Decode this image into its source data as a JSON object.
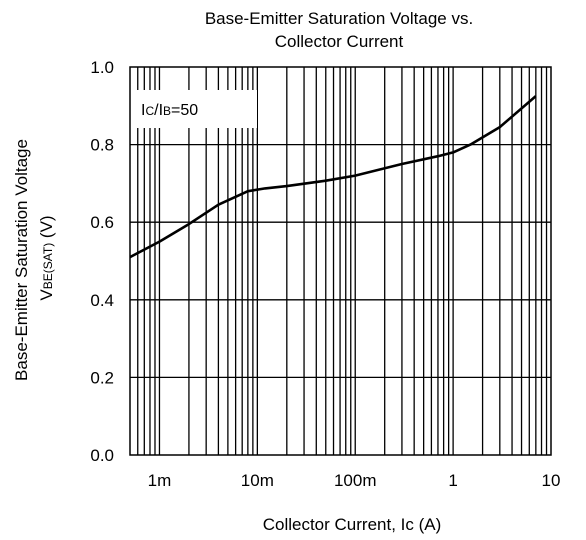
{
  "chart_data": {
    "type": "line",
    "title_line1": "Base-Emitter Saturation Voltage vs.",
    "title_line2": "Collector Current",
    "xlabel": "Collector Current, Ic (A)",
    "ylabel_line1": "Base-Emitter Saturation Voltage",
    "ylabel_line2_main": "V",
    "ylabel_line2_sub": "BE(SAT)",
    "ylabel_line2_unit": "(V)",
    "annotation": {
      "p1": "I",
      "s1": "C",
      "mid": "/I",
      "s2": "B",
      "tail": "=50"
    },
    "x_scale": "log",
    "xlim": [
      0.0005,
      10
    ],
    "ylim": [
      0.0,
      1.0
    ],
    "x_ticks": [
      {
        "value": 0.001,
        "label": "1m"
      },
      {
        "value": 0.01,
        "label": "10m"
      },
      {
        "value": 0.1,
        "label": "100m"
      },
      {
        "value": 1,
        "label": "1"
      },
      {
        "value": 10,
        "label": "10"
      }
    ],
    "y_ticks": [
      {
        "value": 0.0,
        "label": "0.0"
      },
      {
        "value": 0.2,
        "label": "0.2"
      },
      {
        "value": 0.4,
        "label": "0.4"
      },
      {
        "value": 0.6,
        "label": "0.6"
      },
      {
        "value": 0.8,
        "label": "0.8"
      },
      {
        "value": 1.0,
        "label": "1.0"
      }
    ],
    "grid": true,
    "series": [
      {
        "x": [
          0.0005,
          0.001,
          0.002,
          0.004,
          0.008,
          0.012,
          0.02,
          0.05,
          0.1,
          0.3,
          0.7,
          1.0,
          1.5,
          3.0,
          7.0
        ],
        "y": [
          0.51,
          0.55,
          0.595,
          0.645,
          0.68,
          0.687,
          0.693,
          0.707,
          0.72,
          0.75,
          0.77,
          0.78,
          0.8,
          0.845,
          0.925
        ]
      }
    ]
  }
}
